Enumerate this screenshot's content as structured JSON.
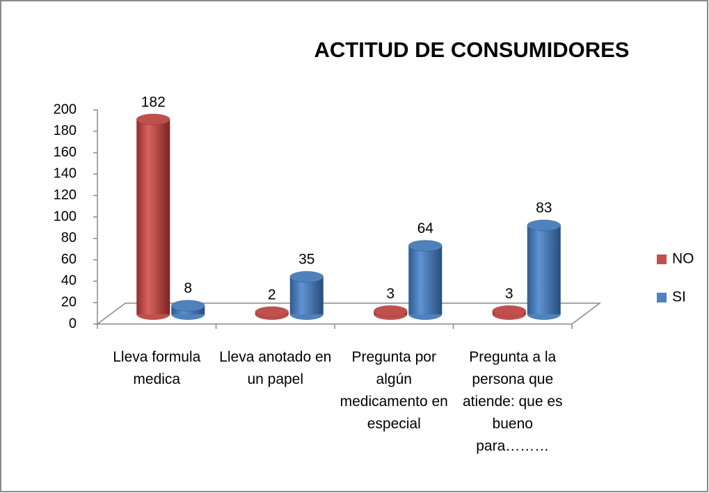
{
  "chart_data": {
    "type": "bar",
    "title": "ACTITUD DE CONSUMIDORES",
    "categories": [
      "Lleva formula medica",
      "Lleva anotado en un papel",
      "Pregunta por algún medicamento en especial",
      "Pregunta a la persona que atiende: que es bueno para………"
    ],
    "series": [
      {
        "name": "NO",
        "color": "#c0504d",
        "values": [
          182,
          2,
          3,
          3
        ]
      },
      {
        "name": "SI",
        "color": "#4f81bd",
        "values": [
          8,
          35,
          64,
          83
        ]
      }
    ],
    "ylim": [
      0,
      200
    ],
    "yticks": [
      0,
      20,
      40,
      60,
      80,
      100,
      120,
      140,
      160,
      180,
      200
    ],
    "legend": "right"
  }
}
